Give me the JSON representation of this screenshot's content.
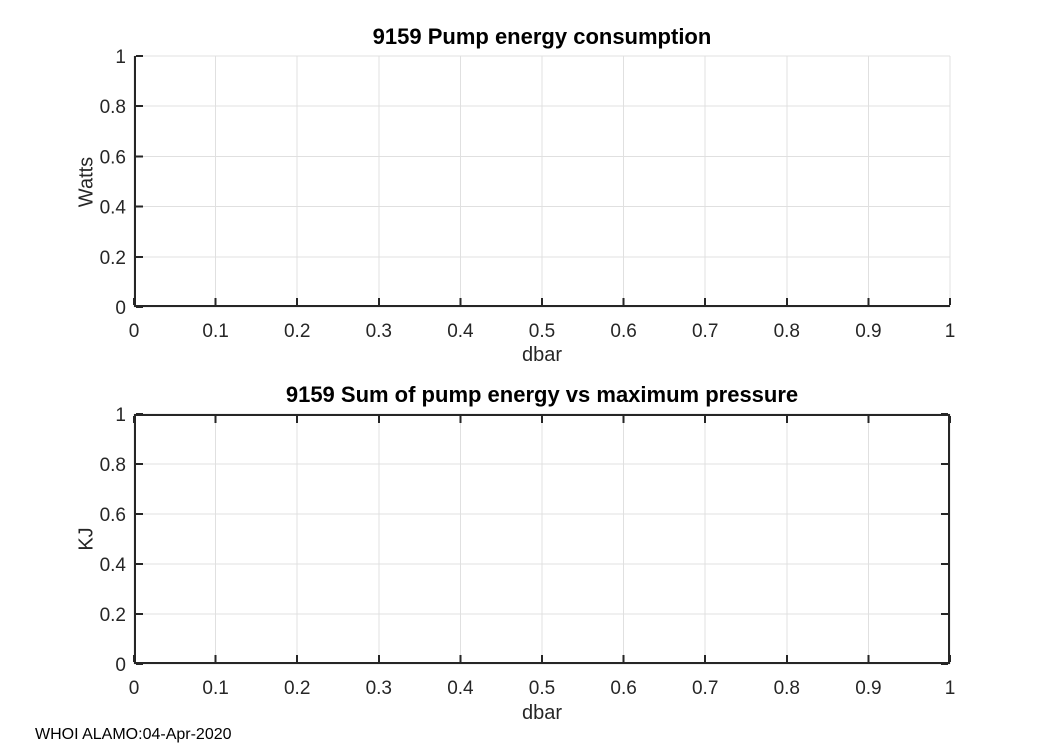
{
  "figure": {
    "background": "#ffffff",
    "footer": "WHOI ALAMO:04-Apr-2020"
  },
  "colors": {
    "axis": "#262626",
    "grid": "#e0e0e0",
    "title": "#000000",
    "label": "#262626"
  },
  "chart_data": [
    {
      "type": "line",
      "title": "9159 Pump energy consumption",
      "xlabel": "dbar",
      "ylabel": "Watts",
      "xlim": [
        0,
        1
      ],
      "ylim": [
        0,
        1
      ],
      "xticks": [
        0,
        0.1,
        0.2,
        0.3,
        0.4,
        0.5,
        0.6,
        0.7,
        0.8,
        0.9,
        1
      ],
      "xtick_labels": [
        "0",
        "0.1",
        "0.2",
        "0.3",
        "0.4",
        "0.5",
        "0.6",
        "0.7",
        "0.8",
        "0.9",
        "1"
      ],
      "yticks": [
        0,
        0.2,
        0.4,
        0.6,
        0.8,
        1
      ],
      "ytick_labels": [
        "0",
        "0.2",
        "0.4",
        "0.6",
        "0.8",
        "1"
      ],
      "grid": true,
      "box": false,
      "legend": null,
      "series": []
    },
    {
      "type": "line",
      "title": "9159 Sum of pump energy vs maximum pressure",
      "xlabel": "dbar",
      "ylabel": "KJ",
      "xlim": [
        0,
        1
      ],
      "ylim": [
        0,
        1
      ],
      "xticks": [
        0,
        0.1,
        0.2,
        0.3,
        0.4,
        0.5,
        0.6,
        0.7,
        0.8,
        0.9,
        1
      ],
      "xtick_labels": [
        "0",
        "0.1",
        "0.2",
        "0.3",
        "0.4",
        "0.5",
        "0.6",
        "0.7",
        "0.8",
        "0.9",
        "1"
      ],
      "yticks": [
        0,
        0.2,
        0.4,
        0.6,
        0.8,
        1
      ],
      "ytick_labels": [
        "0",
        "0.2",
        "0.4",
        "0.6",
        "0.8",
        "1"
      ],
      "grid": true,
      "box": true,
      "legend": null,
      "series": []
    }
  ]
}
